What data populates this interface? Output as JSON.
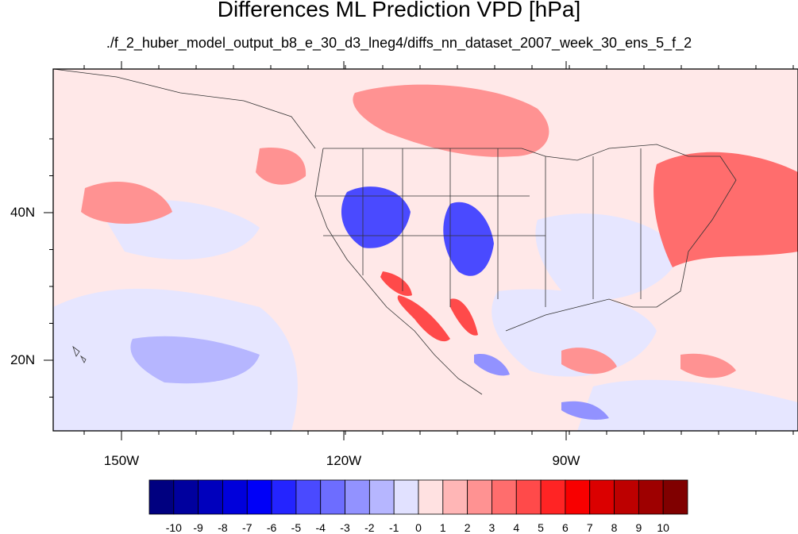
{
  "title": "Differences ML Prediction VPD [hPa]",
  "subtitle": "./f_2_huber_model_output_b8_e_30_d3_lneg4/diffs_nn_dataset_2007_week_30_ens_5_f_2",
  "lat_labels": [
    "40N",
    "20N"
  ],
  "lon_labels": [
    "150W",
    "120W",
    "90W"
  ],
  "colorbar": {
    "labels": [
      "-10",
      "-9",
      "-8",
      "-7",
      "-6",
      "-5",
      "-4",
      "-3",
      "-2",
      "-1",
      "0",
      "1",
      "2",
      "3",
      "4",
      "5",
      "6",
      "7",
      "8",
      "9",
      "10"
    ],
    "colors": [
      "#000080",
      "#00009e",
      "#0000bd",
      "#0000db",
      "#0000f8",
      "#2424ff",
      "#4a4aff",
      "#6d6dff",
      "#9292ff",
      "#b6b6ff",
      "#e1e1ff",
      "#ffe1e1",
      "#ffb6b6",
      "#ff9292",
      "#ff6d6d",
      "#ff4a4a",
      "#ff2424",
      "#f80000",
      "#db0000",
      "#bd0000",
      "#9e0000",
      "#800000"
    ]
  },
  "regions": [
    {
      "name": "ne-pacific-positive",
      "level": 2
    },
    {
      "name": "canada-positive",
      "level": 2
    },
    {
      "name": "west-atlantic-positive",
      "level": 3
    },
    {
      "name": "great-basin-negative",
      "level": -5
    },
    {
      "name": "southern-plains-negative",
      "level": -5
    },
    {
      "name": "baja-positive",
      "level": 4
    },
    {
      "name": "mexico-positive",
      "level": 4
    },
    {
      "name": "central-pacific-negative",
      "level": -2
    },
    {
      "name": "central-america-negative",
      "level": -3
    },
    {
      "name": "caribbean-positive",
      "level": 2
    }
  ]
}
